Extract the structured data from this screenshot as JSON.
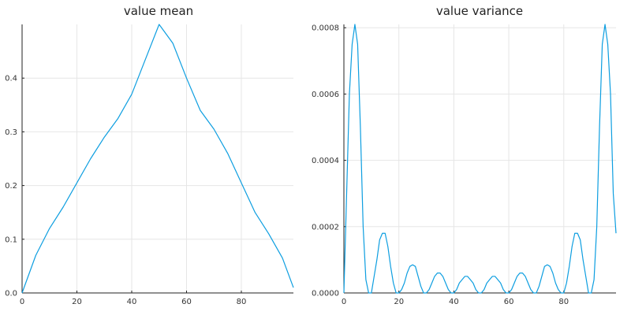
{
  "colors": {
    "series": "#0d9ee0",
    "grid": "#e6e6e6",
    "axis": "#222222"
  },
  "chart_data": [
    {
      "type": "line",
      "title": "value mean",
      "xlabel": "",
      "ylabel": "",
      "xlim": [
        0,
        99
      ],
      "ylim": [
        0,
        0.5
      ],
      "grid": true,
      "xticks": [
        0,
        20,
        40,
        60,
        80
      ],
      "xtick_labels": [
        "0",
        "20",
        "40",
        "60",
        "80"
      ],
      "yticks": [
        0,
        0.1,
        0.2,
        0.3,
        0.4
      ],
      "ytick_labels": [
        "0.0",
        "0.1",
        "0.2",
        "0.3",
        "0.4"
      ],
      "series": [
        {
          "x": [
            0,
            5,
            10,
            15,
            20,
            25,
            30,
            35,
            40,
            45,
            50,
            55,
            60,
            65,
            70,
            75,
            80,
            85,
            90,
            95,
            99
          ],
          "y": [
            0.0,
            0.07,
            0.12,
            0.16,
            0.205,
            0.25,
            0.29,
            0.325,
            0.37,
            0.435,
            0.5,
            0.465,
            0.4,
            0.34,
            0.305,
            0.26,
            0.205,
            0.15,
            0.11,
            0.065,
            0.01
          ]
        }
      ]
    },
    {
      "type": "line",
      "title": "value variance",
      "xlabel": "",
      "ylabel": "",
      "xlim": [
        0,
        99
      ],
      "ylim": [
        0,
        0.00081
      ],
      "grid": true,
      "xticks": [
        0,
        20,
        40,
        60,
        80
      ],
      "xtick_labels": [
        "0",
        "20",
        "40",
        "60",
        "80"
      ],
      "yticks": [
        0,
        0.0002,
        0.0004,
        0.0006,
        0.0008
      ],
      "ytick_labels": [
        "0.0000",
        "0.0002",
        "0.0004",
        "0.0006",
        "0.0008"
      ],
      "series": [
        {
          "x": [
            0,
            1,
            2,
            3,
            4,
            5,
            6,
            7,
            8,
            9,
            10,
            11,
            12,
            13,
            14,
            15,
            16,
            17,
            18,
            19,
            20,
            21,
            22,
            23,
            24,
            25,
            26,
            27,
            28,
            29,
            30,
            31,
            32,
            33,
            34,
            35,
            36,
            37,
            38,
            39,
            40,
            41,
            42,
            43,
            44,
            45,
            46,
            47,
            48,
            49,
            50,
            51,
            52,
            53,
            54,
            55,
            56,
            57,
            58,
            59,
            60,
            61,
            62,
            63,
            64,
            65,
            66,
            67,
            68,
            69,
            70,
            71,
            72,
            73,
            74,
            75,
            76,
            77,
            78,
            79,
            80,
            81,
            82,
            83,
            84,
            85,
            86,
            87,
            88,
            89,
            90,
            91,
            92,
            93,
            94,
            95,
            96,
            97,
            98,
            99
          ],
          "y": [
            0.0,
            0.0003,
            0.0006,
            0.00075,
            0.00081,
            0.00075,
            0.0005,
            0.0002,
            4e-05,
            0.0,
            0.0,
            5e-05,
            0.0001,
            0.00016,
            0.00018,
            0.00018,
            0.00014,
            8e-05,
            3e-05,
            0.0,
            0.0,
            1e-05,
            3e-05,
            6e-05,
            8e-05,
            8.5e-05,
            8e-05,
            5e-05,
            2e-05,
            0.0,
            0.0,
            1e-05,
            3e-05,
            5e-05,
            6e-05,
            6e-05,
            5e-05,
            3e-05,
            1e-05,
            0.0,
            0.0,
            1e-05,
            3e-05,
            4e-05,
            5e-05,
            5e-05,
            4e-05,
            3e-05,
            1e-05,
            0.0,
            0.0,
            1e-05,
            3e-05,
            4e-05,
            5e-05,
            5e-05,
            4e-05,
            3e-05,
            1e-05,
            0.0,
            0.0,
            1e-05,
            3e-05,
            5e-05,
            6e-05,
            6e-05,
            5e-05,
            3e-05,
            1e-05,
            0.0,
            0.0,
            2e-05,
            5e-05,
            8e-05,
            8.5e-05,
            8e-05,
            6e-05,
            3e-05,
            1e-05,
            0.0,
            0.0,
            3e-05,
            8e-05,
            0.00014,
            0.00018,
            0.00018,
            0.00016,
            0.0001,
            5e-05,
            0.0,
            0.0,
            4e-05,
            0.0002,
            0.0005,
            0.00075,
            0.00081,
            0.00075,
            0.0006,
            0.0003,
            0.00018
          ]
        }
      ]
    }
  ]
}
